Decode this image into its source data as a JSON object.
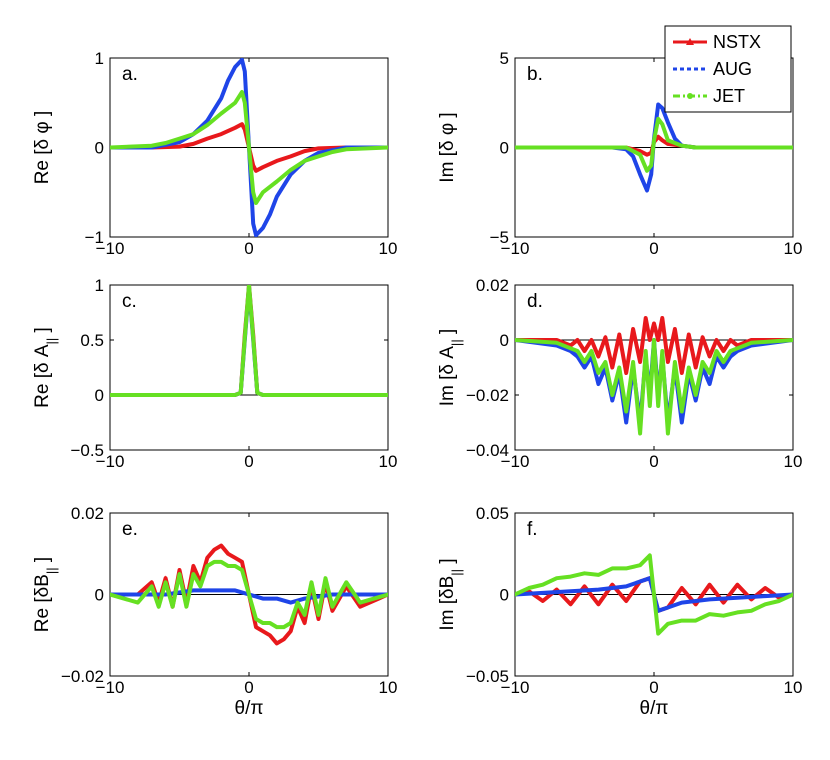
{
  "chart_data": [
    {
      "id": "a",
      "type": "line",
      "label": "a.",
      "ylabel": "Re [δ φ ]",
      "xlim": [
        -10,
        10
      ],
      "ylim": [
        -1,
        1
      ],
      "xticks": [
        -10,
        0,
        10
      ],
      "xtick_labels": [
        "−10",
        "0",
        "10"
      ],
      "yticks": [
        -1,
        0,
        1
      ],
      "ytick_labels": [
        "−1",
        "0",
        "1"
      ],
      "xlabel": "",
      "series": [
        {
          "name": "NSTX",
          "x": [
            -10,
            -7,
            -5,
            -4,
            -3,
            -2,
            -1,
            -0.5,
            -0.3,
            0,
            0.3,
            0.5,
            1,
            2,
            3,
            4,
            5,
            7,
            10
          ],
          "y": [
            0,
            0,
            0.01,
            0.04,
            0.1,
            0.15,
            0.22,
            0.26,
            0.2,
            0,
            -0.2,
            -0.26,
            -0.22,
            -0.15,
            -0.1,
            -0.04,
            -0.01,
            0,
            0
          ]
        },
        {
          "name": "AUG",
          "x": [
            -10,
            -7,
            -6,
            -5,
            -4,
            -3,
            -2,
            -1.5,
            -1,
            -0.5,
            -0.3,
            0,
            0.3,
            0.5,
            1,
            1.5,
            2,
            3,
            4,
            5,
            6,
            7,
            10
          ],
          "y": [
            0,
            0,
            0.03,
            0.06,
            0.15,
            0.3,
            0.55,
            0.75,
            0.9,
            0.98,
            0.85,
            0,
            -0.85,
            -0.98,
            -0.9,
            -0.75,
            -0.55,
            -0.3,
            -0.15,
            -0.06,
            -0.03,
            0,
            0
          ]
        },
        {
          "name": "JET",
          "x": [
            -10,
            -7,
            -6,
            -5,
            -4,
            -3,
            -2,
            -1,
            -0.5,
            -0.3,
            0,
            0.3,
            0.5,
            1,
            2,
            3,
            4,
            5,
            6,
            7,
            10
          ],
          "y": [
            0,
            0.02,
            0.05,
            0.1,
            0.15,
            0.25,
            0.38,
            0.5,
            0.62,
            0.5,
            0,
            -0.5,
            -0.62,
            -0.5,
            -0.38,
            -0.25,
            -0.15,
            -0.1,
            -0.05,
            -0.02,
            0
          ]
        }
      ]
    },
    {
      "id": "b",
      "type": "line",
      "label": "b.",
      "ylabel": "Im [δ φ ]",
      "xlim": [
        -10,
        10
      ],
      "ylim": [
        -5,
        5
      ],
      "xticks": [
        -10,
        0,
        10
      ],
      "xtick_labels": [
        "−10",
        "0",
        "10"
      ],
      "yticks": [
        -5,
        0,
        5
      ],
      "ytick_labels": [
        "−5",
        "0",
        "5"
      ],
      "xlabel": "",
      "series": [
        {
          "name": "NSTX",
          "x": [
            -10,
            -3,
            -2,
            -1,
            -0.5,
            -0.2,
            0,
            0.3,
            0.6,
            1,
            2,
            3,
            10
          ],
          "y": [
            0,
            0,
            0,
            -0.2,
            -0.4,
            -0.3,
            0.3,
            0.6,
            0.4,
            0.2,
            0.1,
            0,
            0
          ]
        },
        {
          "name": "AUG",
          "x": [
            -10,
            -3,
            -2,
            -1.5,
            -1,
            -0.5,
            -0.2,
            0,
            0.3,
            0.6,
            1,
            1.5,
            2,
            3,
            10
          ],
          "y": [
            0,
            0,
            -0.1,
            -0.5,
            -1.5,
            -2.4,
            -1.5,
            0.5,
            2.4,
            2.2,
            1.4,
            0.5,
            0.1,
            0,
            0
          ]
        },
        {
          "name": "JET",
          "x": [
            -10,
            -3,
            -2,
            -1,
            -0.5,
            -0.2,
            0,
            0.3,
            0.6,
            1,
            2,
            3,
            10
          ],
          "y": [
            0,
            0,
            0,
            -0.4,
            -1.3,
            -1.0,
            0.4,
            1.6,
            1.3,
            0.4,
            0.1,
            0,
            0
          ]
        }
      ]
    },
    {
      "id": "c",
      "type": "line",
      "label": "c.",
      "ylabel": "Re [δ A",
      "ylabel_sub": "||",
      "ylabel_end": "]",
      "xlim": [
        -10,
        10
      ],
      "ylim": [
        -0.5,
        1
      ],
      "xticks": [
        -10,
        0,
        10
      ],
      "xtick_labels": [
        "−10",
        "0",
        "10"
      ],
      "yticks": [
        -0.5,
        0,
        0.5,
        1
      ],
      "ytick_labels": [
        "−0.5",
        "0",
        "0.5",
        "1"
      ],
      "xlabel": "",
      "series": [
        {
          "name": "NSTX",
          "x": [
            -10,
            -1,
            -0.6,
            -0.3,
            0,
            0.3,
            0.6,
            1,
            10
          ],
          "y": [
            0,
            0,
            0.02,
            0.55,
            1,
            0.55,
            0.02,
            0,
            0
          ]
        },
        {
          "name": "AUG",
          "x": [
            -10,
            -1,
            -0.6,
            -0.3,
            0,
            0.3,
            0.6,
            1,
            10
          ],
          "y": [
            0,
            0,
            0.02,
            0.5,
            0.98,
            0.5,
            0.02,
            0,
            0
          ]
        },
        {
          "name": "JET",
          "x": [
            -10,
            -1,
            -0.6,
            -0.3,
            0,
            0.3,
            0.6,
            1,
            10
          ],
          "y": [
            0,
            0,
            0.02,
            0.52,
            1,
            0.52,
            0.02,
            0,
            0
          ]
        }
      ]
    },
    {
      "id": "d",
      "type": "line",
      "label": "d.",
      "ylabel": "Im [δ A",
      "ylabel_sub": "||",
      "ylabel_end": "]",
      "xlim": [
        -10,
        10
      ],
      "ylim": [
        -0.04,
        0.02
      ],
      "xticks": [
        -10,
        0,
        10
      ],
      "xtick_labels": [
        "−10",
        "0",
        "10"
      ],
      "yticks": [
        -0.04,
        -0.02,
        0,
        0.02
      ],
      "ytick_labels": [
        "−0.04",
        "−0.02",
        "0",
        "0.02"
      ],
      "xlabel": "",
      "series": [
        {
          "name": "NSTX",
          "x": [
            -10,
            -7,
            -6,
            -5.5,
            -5,
            -4.5,
            -4,
            -3.5,
            -3,
            -2.5,
            -2,
            -1.5,
            -1,
            -0.6,
            -0.3,
            0,
            0.3,
            0.6,
            1,
            1.5,
            2,
            2.5,
            3,
            3.5,
            4,
            4.5,
            5,
            5.5,
            6,
            7,
            10
          ],
          "y": [
            0,
            0,
            -0.002,
            0,
            -0.004,
            0,
            -0.006,
            0.001,
            -0.01,
            0.002,
            -0.012,
            0.004,
            -0.008,
            0.008,
            0,
            0.006,
            0,
            0.008,
            -0.008,
            0.004,
            -0.012,
            0.002,
            -0.01,
            0.001,
            -0.006,
            0,
            -0.004,
            0,
            -0.002,
            0,
            0
          ]
        },
        {
          "name": "AUG",
          "x": [
            -10,
            -7,
            -6,
            -5.5,
            -5,
            -4.5,
            -4,
            -3.5,
            -3,
            -2.5,
            -2,
            -1.5,
            -1,
            -0.6,
            -0.3,
            0,
            0.3,
            0.6,
            1,
            1.5,
            2,
            2.5,
            3,
            3.5,
            4,
            4.5,
            5,
            5.5,
            6,
            7,
            10
          ],
          "y": [
            0,
            -0.002,
            -0.004,
            -0.006,
            -0.01,
            -0.006,
            -0.016,
            -0.01,
            -0.022,
            -0.012,
            -0.03,
            -0.01,
            -0.03,
            -0.006,
            -0.02,
            0,
            -0.02,
            -0.006,
            -0.03,
            -0.01,
            -0.03,
            -0.012,
            -0.022,
            -0.01,
            -0.016,
            -0.006,
            -0.01,
            -0.006,
            -0.004,
            -0.002,
            0
          ]
        },
        {
          "name": "JET",
          "x": [
            -10,
            -7,
            -6,
            -5.5,
            -5,
            -4.5,
            -4,
            -3.5,
            -3,
            -2.5,
            -2,
            -1.5,
            -1,
            -0.6,
            -0.3,
            0,
            0.3,
            0.6,
            1,
            1.5,
            2,
            2.5,
            3,
            3.5,
            4,
            4.5,
            5,
            5.5,
            6,
            7,
            10
          ],
          "y": [
            0,
            -0.001,
            -0.003,
            -0.004,
            -0.008,
            -0.004,
            -0.012,
            -0.008,
            -0.02,
            -0.01,
            -0.026,
            -0.008,
            -0.034,
            -0.004,
            -0.024,
            0,
            -0.024,
            -0.004,
            -0.034,
            -0.008,
            -0.026,
            -0.01,
            -0.02,
            -0.008,
            -0.012,
            -0.004,
            -0.008,
            -0.004,
            -0.003,
            -0.001,
            0
          ]
        }
      ]
    },
    {
      "id": "e",
      "type": "line",
      "label": "e.",
      "ylabel": "Re [δB",
      "ylabel_sub": "||",
      "ylabel_end": "]",
      "xlim": [
        -10,
        10
      ],
      "ylim": [
        -0.02,
        0.02
      ],
      "xticks": [
        -10,
        0,
        10
      ],
      "xtick_labels": [
        "−10",
        "0",
        "10"
      ],
      "yticks": [
        -0.02,
        0,
        0.02
      ],
      "ytick_labels": [
        "−0.02",
        "0",
        "0.02"
      ],
      "xlabel": "θ/π",
      "series": [
        {
          "name": "NSTX",
          "x": [
            -10,
            -8,
            -7,
            -6.5,
            -6,
            -5.5,
            -5,
            -4.5,
            -4,
            -3.5,
            -3,
            -2.5,
            -2,
            -1.5,
            -1,
            -0.5,
            0,
            0.5,
            1,
            1.5,
            2,
            2.5,
            3,
            3.5,
            4,
            4.5,
            5,
            5.5,
            6,
            7,
            8,
            10
          ],
          "y": [
            0,
            0,
            0.003,
            -0.002,
            0.004,
            -0.003,
            0.006,
            -0.002,
            0.007,
            0.003,
            0.009,
            0.011,
            0.012,
            0.01,
            0.009,
            0.008,
            0,
            -0.008,
            -0.009,
            -0.01,
            -0.012,
            -0.011,
            -0.009,
            -0.003,
            -0.007,
            0.002,
            -0.006,
            0.003,
            -0.004,
            0.002,
            -0.003,
            0
          ]
        },
        {
          "name": "AUG",
          "x": [
            -10,
            -8,
            -6,
            -4,
            -2,
            -1,
            0,
            1,
            2,
            3,
            4,
            6,
            8,
            10
          ],
          "y": [
            0,
            0,
            0,
            0.001,
            0.001,
            0.001,
            0,
            -0.001,
            -0.001,
            -0.002,
            -0.001,
            0,
            0,
            0
          ]
        },
        {
          "name": "JET",
          "x": [
            -10,
            -8,
            -7,
            -6.5,
            -6,
            -5.5,
            -5,
            -4.5,
            -4,
            -3.5,
            -3,
            -2.5,
            -2,
            -1.5,
            -1,
            -0.5,
            0,
            0.5,
            1,
            1.5,
            2,
            2.5,
            3,
            3.5,
            4,
            4.5,
            5,
            5.5,
            6,
            7,
            8,
            10
          ],
          "y": [
            0,
            -0.002,
            0.002,
            -0.003,
            0.003,
            -0.003,
            0.005,
            -0.003,
            0.005,
            0.002,
            0.007,
            0.008,
            0.008,
            0.007,
            0.007,
            0.006,
            0,
            -0.006,
            -0.007,
            -0.007,
            -0.008,
            -0.008,
            -0.007,
            -0.002,
            -0.005,
            0.003,
            -0.005,
            0.004,
            -0.003,
            0.003,
            -0.002,
            0
          ]
        }
      ]
    },
    {
      "id": "f",
      "type": "line",
      "label": "f.",
      "ylabel": "Im [δB",
      "ylabel_sub": "||",
      "ylabel_end": "]",
      "xlim": [
        -10,
        10
      ],
      "ylim": [
        -0.05,
        0.05
      ],
      "xticks": [
        -10,
        0,
        10
      ],
      "xtick_labels": [
        "−10",
        "0",
        "10"
      ],
      "yticks": [
        -0.05,
        0,
        0.05
      ],
      "ytick_labels": [
        "−0.05",
        "0",
        "0.05"
      ],
      "xlabel": "θ/π",
      "series": [
        {
          "name": "NSTX",
          "x": [
            -10,
            -9,
            -8,
            -7,
            -6,
            -5,
            -4,
            -3,
            -2,
            -1,
            -0.3,
            0,
            0.3,
            1,
            2,
            3,
            4,
            5,
            6,
            7,
            8,
            9,
            10
          ],
          "y": [
            0,
            0.002,
            -0.004,
            0.003,
            -0.006,
            0.005,
            -0.006,
            0.006,
            -0.004,
            0.008,
            0.01,
            0,
            -0.01,
            -0.008,
            0.004,
            -0.006,
            0.006,
            -0.005,
            0.006,
            -0.003,
            0.004,
            -0.002,
            0
          ]
        },
        {
          "name": "AUG",
          "x": [
            -10,
            -8,
            -6,
            -4,
            -2,
            -1,
            -0.3,
            0,
            0.3,
            1,
            2,
            4,
            6,
            8,
            10
          ],
          "y": [
            0,
            0.001,
            0.002,
            0.003,
            0.005,
            0.008,
            0.01,
            0,
            -0.01,
            -0.008,
            -0.005,
            -0.003,
            -0.002,
            -0.001,
            0
          ]
        },
        {
          "name": "JET",
          "x": [
            -10,
            -9,
            -8,
            -7,
            -6,
            -5,
            -4,
            -3,
            -2,
            -1,
            -0.3,
            0,
            0.3,
            1,
            2,
            3,
            4,
            5,
            6,
            7,
            8,
            9,
            10
          ],
          "y": [
            0,
            0.004,
            0.006,
            0.01,
            0.011,
            0.013,
            0.012,
            0.016,
            0.016,
            0.018,
            0.024,
            0,
            -0.024,
            -0.018,
            -0.016,
            -0.016,
            -0.012,
            -0.013,
            -0.011,
            -0.01,
            -0.006,
            -0.004,
            0
          ]
        }
      ]
    }
  ],
  "legend": {
    "entries": [
      {
        "name": "NSTX",
        "color": "#e8191c",
        "marker": "triangle",
        "dash": "solid"
      },
      {
        "name": "AUG",
        "color": "#1f45e8",
        "marker": "none",
        "dash": "dashed"
      },
      {
        "name": "JET",
        "color": "#66e022",
        "marker": "dot",
        "dash": "dashdot"
      }
    ],
    "placement": "top-right"
  },
  "colors": {
    "NSTX": "#e8191c",
    "AUG": "#1f45e8",
    "JET": "#66e022"
  }
}
